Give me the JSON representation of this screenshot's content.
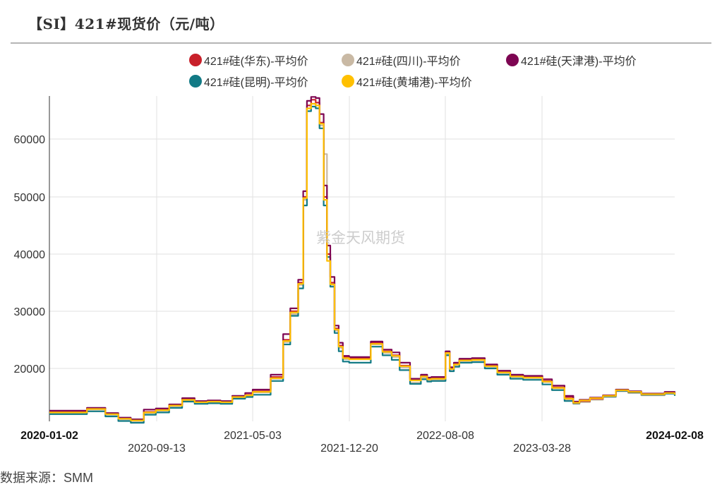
{
  "title": "【SI】421#现货价（元/吨）",
  "source": "数据来源：SMM",
  "watermark": "紫金天风期货",
  "legend": [
    {
      "label": "421#硅(华东)-平均价",
      "color": "#C8202A"
    },
    {
      "label": "421#硅(四川)-平均价",
      "color": "#C9B9A4"
    },
    {
      "label": "421#硅(天津港)-平均价",
      "color": "#7D0552"
    },
    {
      "label": "421#硅(昆明)-平均价",
      "color": "#127A85"
    },
    {
      "label": "421#硅(黄埔港)-平均价",
      "color": "#FFC000"
    }
  ],
  "axis": {
    "y_ticks": [
      "60000",
      "50000",
      "40000",
      "30000",
      "20000"
    ],
    "x_ticks_top": [
      "2020-01-02",
      "2021-05-03",
      "2022-08-08",
      "2024-02-08"
    ],
    "x_ticks_bottom": [
      "2020-09-13",
      "2021-12-20",
      "2023-03-28"
    ]
  },
  "chart_data": {
    "type": "line",
    "title": "【SI】421#现货价（元/吨）",
    "xlabel": "",
    "ylabel": "",
    "ylim": [
      9300,
      67500
    ],
    "grid": true,
    "legend_position": "top",
    "x_tick_labels": [
      "2020-01-02",
      "2020-09-13",
      "2021-05-03",
      "2021-12-20",
      "2022-08-08",
      "2023-03-28",
      "2024-02-08"
    ],
    "y_tick_labels": [
      20000,
      30000,
      40000,
      50000,
      60000
    ],
    "x": [
      "2020-01-02",
      "2020-03-01",
      "2020-04-01",
      "2020-05-15",
      "2020-06-15",
      "2020-07-15",
      "2020-08-15",
      "2020-09-13",
      "2020-10-15",
      "2020-11-15",
      "2020-12-15",
      "2021-01-15",
      "2021-02-15",
      "2021-03-15",
      "2021-04-15",
      "2021-05-03",
      "2021-06-15",
      "2021-07-15",
      "2021-08-01",
      "2021-08-20",
      "2021-09-01",
      "2021-09-10",
      "2021-09-20",
      "2021-10-01",
      "2021-10-10",
      "2021-10-20",
      "2021-10-28",
      "2021-11-05",
      "2021-11-15",
      "2021-11-25",
      "2021-12-05",
      "2021-12-20",
      "2022-01-10",
      "2022-02-10",
      "2022-03-10",
      "2022-04-01",
      "2022-04-20",
      "2022-05-15",
      "2022-06-10",
      "2022-06-25",
      "2022-07-05",
      "2022-07-20",
      "2022-08-08",
      "2022-08-18",
      "2022-08-28",
      "2022-09-10",
      "2022-10-10",
      "2022-11-10",
      "2022-12-10",
      "2023-01-10",
      "2023-02-10",
      "2023-03-28",
      "2023-04-20",
      "2023-05-20",
      "2023-06-10",
      "2023-06-25",
      "2023-07-20",
      "2023-08-20",
      "2023-09-20",
      "2023-10-20",
      "2023-11-20",
      "2023-12-20",
      "2024-01-15",
      "2024-02-08"
    ],
    "series": [
      {
        "name": "421#硅(华东)-平均价",
        "color": "#C8202A",
        "values": [
          12500,
          12500,
          13000,
          12100,
          11300,
          11000,
          12400,
          12900,
          13600,
          14600,
          14200,
          14300,
          14200,
          15100,
          15400,
          16000,
          18500,
          25000,
          30000,
          35000,
          50000,
          66000,
          67000,
          66500,
          63000,
          50000,
          40000,
          35000,
          27000,
          24000,
          22000,
          21800,
          21800,
          24500,
          23000,
          22300,
          20500,
          18000,
          18700,
          18200,
          18300,
          18300,
          22800,
          20000,
          20800,
          21500,
          21600,
          20500,
          19400,
          18700,
          18500,
          17800,
          16700,
          15000,
          14000,
          14300,
          14700,
          15200,
          16200,
          15900,
          15500,
          15500,
          15800,
          15500
        ]
      },
      {
        "name": "421#硅(四川)-平均价",
        "color": "#C9B9A4",
        "values": [
          12200,
          12200,
          12800,
          11900,
          11100,
          10800,
          12200,
          12600,
          13400,
          14400,
          14000,
          14100,
          14000,
          14900,
          15200,
          15800,
          18200,
          24600,
          29500,
          34600,
          49500,
          65500,
          66300,
          66000,
          62500,
          57500,
          40000,
          34600,
          26600,
          23600,
          21600,
          21600,
          21600,
          24200,
          22700,
          22000,
          20200,
          17500,
          18400,
          17900,
          18000,
          18000,
          22500,
          19800,
          20600,
          21300,
          21400,
          20300,
          19200,
          18500,
          18300,
          17600,
          16500,
          14500,
          13800,
          14100,
          14500,
          15000,
          16000,
          15700,
          15300,
          15300,
          15600,
          15400
        ]
      },
      {
        "name": "421#硅(天津港)-平均价",
        "color": "#7D0552",
        "values": [
          12600,
          12600,
          13100,
          12200,
          11400,
          11100,
          12800,
          13000,
          13700,
          14800,
          14300,
          14400,
          14300,
          15200,
          15700,
          16300,
          18900,
          26000,
          30500,
          35500,
          51000,
          66800,
          67500,
          67300,
          64500,
          52000,
          41500,
          36000,
          27500,
          24500,
          22200,
          22000,
          22000,
          24700,
          23300,
          22800,
          21000,
          18200,
          18900,
          18400,
          18500,
          18500,
          23000,
          20200,
          21000,
          21700,
          21800,
          20700,
          19600,
          18900,
          18700,
          18100,
          17000,
          15200,
          14200,
          14500,
          14900,
          15300,
          16300,
          16000,
          15600,
          15600,
          15900,
          15600
        ]
      },
      {
        "name": "421#硅(昆明)-平均价",
        "color": "#127A85",
        "values": [
          12000,
          12000,
          12500,
          11600,
          10800,
          10500,
          11900,
          12300,
          13100,
          14200,
          13800,
          13900,
          13800,
          14700,
          15000,
          15400,
          17800,
          24200,
          29200,
          34000,
          48500,
          65000,
          65800,
          65500,
          62000,
          48500,
          39500,
          34300,
          26200,
          23000,
          21200,
          21000,
          21000,
          23800,
          22300,
          21500,
          19700,
          17300,
          18100,
          17700,
          17800,
          17800,
          22300,
          19500,
          20300,
          21000,
          21100,
          20000,
          18900,
          18200,
          18000,
          17200,
          16200,
          14300,
          13900,
          14300,
          14700,
          15100,
          16100,
          15800,
          15400,
          15400,
          15600,
          15200
        ]
      },
      {
        "name": "421#硅(黄埔港)-平均价",
        "color": "#FFC000",
        "values": [
          12300,
          12300,
          12900,
          12000,
          11200,
          10900,
          12300,
          12700,
          13500,
          14500,
          14100,
          14200,
          14100,
          15000,
          15300,
          15900,
          18300,
          24800,
          29800,
          34800,
          49800,
          65500,
          66300,
          66000,
          62800,
          49500,
          38800,
          34700,
          26800,
          23800,
          21800,
          21600,
          21600,
          24300,
          22900,
          22200,
          20400,
          17900,
          18600,
          18100,
          18200,
          18200,
          22700,
          19900,
          20700,
          21400,
          21500,
          20400,
          19300,
          18600,
          18400,
          17700,
          16600,
          14700,
          14000,
          14400,
          14800,
          15200,
          16200,
          15900,
          15500,
          15500,
          15700,
          15400
        ]
      }
    ]
  }
}
